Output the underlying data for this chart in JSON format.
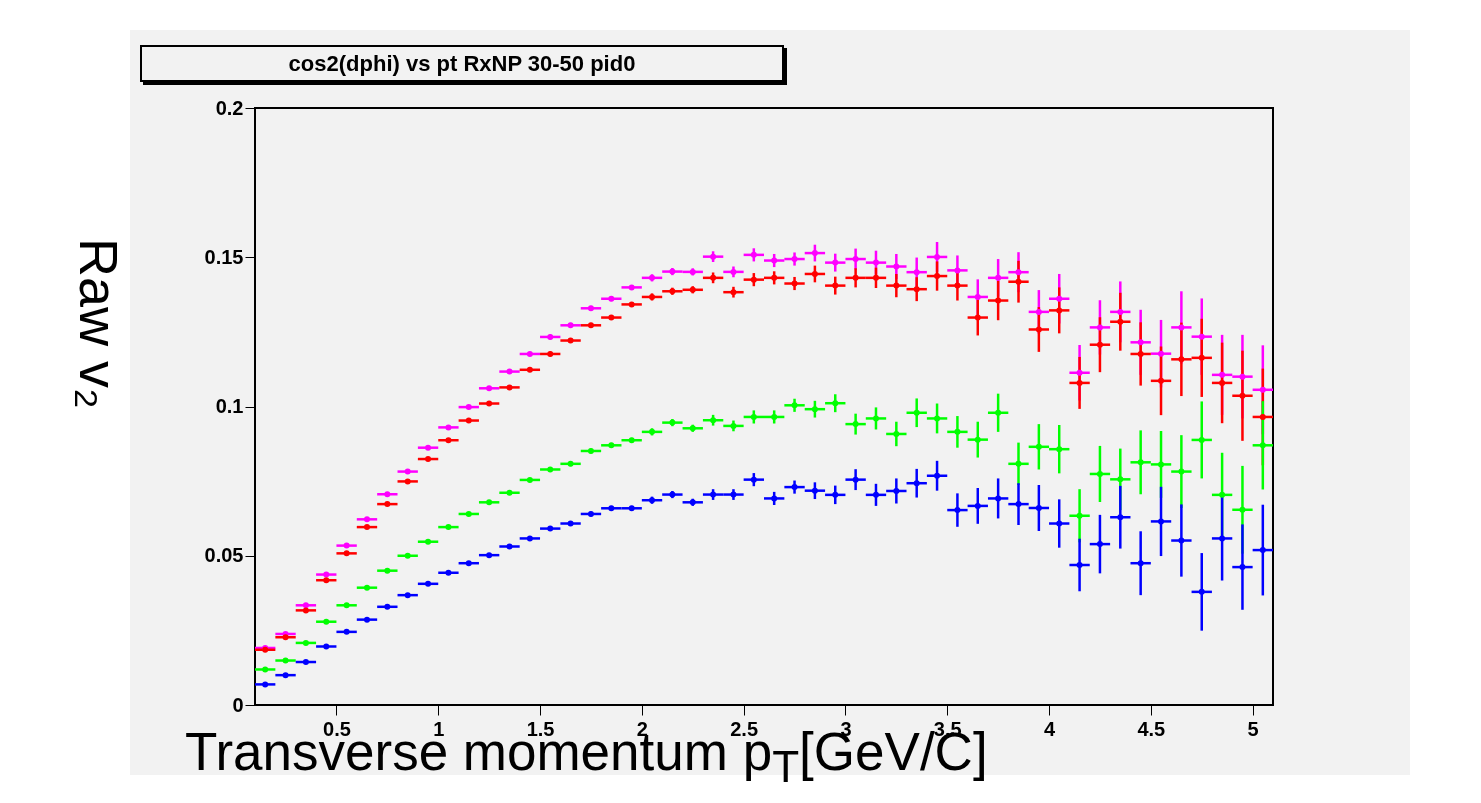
{
  "chart_data": {
    "type": "scatter",
    "title": "cos2(dphi) vs pt RxNP 30-50 pid0",
    "xlabel": "Transverse momentum p$_{T}$[GeV/C]",
    "ylabel": "Raw v₂",
    "x": [
      0.15,
      0.25,
      0.35,
      0.45,
      0.55,
      0.65,
      0.75,
      0.85,
      0.95,
      1.05,
      1.15,
      1.25,
      1.35,
      1.45,
      1.55,
      1.65,
      1.75,
      1.85,
      1.95,
      2.05,
      2.15,
      2.25,
      2.35,
      2.45,
      2.55,
      2.65,
      2.75,
      2.85,
      2.95,
      3.05,
      3.15,
      3.25,
      3.35,
      3.45,
      3.55,
      3.65,
      3.75,
      3.85,
      3.95,
      4.05,
      4.15,
      4.25,
      4.35,
      4.45,
      4.55,
      4.65,
      4.75,
      4.85,
      4.95,
      5.05
    ],
    "xlim": [
      0.1,
      5.1
    ],
    "xticks": [
      0.5,
      1,
      1.5,
      2,
      2.5,
      3,
      3.5,
      4,
      4.5,
      5
    ],
    "ylim": [
      0,
      0.2
    ],
    "yticks": [
      0,
      0.05,
      0.1,
      0.15,
      0.2
    ],
    "marker": "circle",
    "series": [
      {
        "color": "#ff00ff",
        "values": [
          0.0191,
          0.0238,
          0.0334,
          0.0437,
          0.0534,
          0.0622,
          0.0706,
          0.0782,
          0.0862,
          0.093,
          0.0998,
          0.1061,
          0.1117,
          0.1176,
          0.1233,
          0.1272,
          0.1329,
          0.1361,
          0.1399,
          0.1431,
          0.1452,
          0.1451,
          0.1502,
          0.1451,
          0.1508,
          0.1489,
          0.1494,
          0.1514,
          0.1482,
          0.1494,
          0.1482,
          0.1469,
          0.145,
          0.1501,
          0.1456,
          0.1367,
          0.1431,
          0.145,
          0.1317,
          0.1361,
          0.1113,
          0.1265,
          0.1317,
          0.1215,
          0.1177,
          0.1265,
          0.1234,
          0.1106,
          0.11,
          0.1056
        ],
        "errors": [
          0.0005,
          0.0005,
          0.0005,
          0.0005,
          0.0005,
          0.0005,
          0.0005,
          0.0005,
          0.0005,
          0.0005,
          0.0005,
          0.0005,
          0.0005,
          0.0005,
          0.0008,
          0.0008,
          0.0008,
          0.0008,
          0.0008,
          0.0012,
          0.0012,
          0.0012,
          0.0018,
          0.0018,
          0.0022,
          0.0022,
          0.0022,
          0.0028,
          0.003,
          0.0035,
          0.004,
          0.0042,
          0.0049,
          0.005,
          0.005,
          0.0059,
          0.0063,
          0.0067,
          0.0073,
          0.0083,
          0.0093,
          0.0091,
          0.0102,
          0.0109,
          0.0113,
          0.0121,
          0.0128,
          0.0134,
          0.014,
          0.0149
        ],
        "xerrors": [
          0.05,
          0.05,
          0.05,
          0.05,
          0.05,
          0.05,
          0.05,
          0.05,
          0.05,
          0.05,
          0.05,
          0.05,
          0.05,
          0.05,
          0.05,
          0.05,
          0.05,
          0.05,
          0.05,
          0.05,
          0.05,
          0.05,
          0.05,
          0.05,
          0.05,
          0.05,
          0.05,
          0.05,
          0.05,
          0.05,
          0.05,
          0.05,
          0.05,
          0.05,
          0.05,
          0.05,
          0.05,
          0.05,
          0.05,
          0.05,
          0.05,
          0.05,
          0.05,
          0.05,
          0.05,
          0.05,
          0.05,
          0.05,
          0.05,
          0.05
        ]
      },
      {
        "color": "#ff0000",
        "values": [
          0.0185,
          0.0227,
          0.0317,
          0.0418,
          0.0508,
          0.0596,
          0.0673,
          0.0749,
          0.0824,
          0.0887,
          0.0953,
          0.101,
          0.1064,
          0.1123,
          0.1176,
          0.1221,
          0.1272,
          0.1298,
          0.1342,
          0.1367,
          0.1386,
          0.1391,
          0.1431,
          0.1383,
          0.1425,
          0.1431,
          0.1412,
          0.1444,
          0.1405,
          0.1431,
          0.1431,
          0.1405,
          0.1393,
          0.1437,
          0.1405,
          0.1298,
          0.1355,
          0.1418,
          0.1258,
          0.1322,
          0.1079,
          0.1207,
          0.1284,
          0.1176,
          0.1086,
          0.1158,
          0.1163,
          0.1079,
          0.1036,
          0.0965
        ],
        "errors": [
          0.0005,
          0.0005,
          0.0005,
          0.0005,
          0.0005,
          0.0005,
          0.0005,
          0.0005,
          0.0005,
          0.0005,
          0.0005,
          0.0005,
          0.0005,
          0.0005,
          0.0008,
          0.0008,
          0.0008,
          0.0008,
          0.0008,
          0.0012,
          0.0012,
          0.0012,
          0.0018,
          0.0018,
          0.0022,
          0.0022,
          0.0022,
          0.0028,
          0.003,
          0.0032,
          0.0034,
          0.0039,
          0.004,
          0.0049,
          0.005,
          0.006,
          0.0066,
          0.007,
          0.0075,
          0.0077,
          0.0087,
          0.0092,
          0.0097,
          0.0106,
          0.0115,
          0.0123,
          0.0131,
          0.0135,
          0.0151,
          0.0162
        ],
        "xerrors": [
          0.05,
          0.05,
          0.05,
          0.05,
          0.05,
          0.05,
          0.05,
          0.05,
          0.05,
          0.05,
          0.05,
          0.05,
          0.05,
          0.05,
          0.05,
          0.05,
          0.05,
          0.05,
          0.05,
          0.05,
          0.05,
          0.05,
          0.05,
          0.05,
          0.05,
          0.05,
          0.05,
          0.05,
          0.05,
          0.05,
          0.05,
          0.05,
          0.05,
          0.05,
          0.05,
          0.05,
          0.05,
          0.05,
          0.05,
          0.05,
          0.05,
          0.05,
          0.05,
          0.05,
          0.05,
          0.05,
          0.05,
          0.05,
          0.05,
          0.05
        ]
      },
      {
        "color": "#00ff00",
        "values": [
          0.0119,
          0.0149,
          0.0208,
          0.0279,
          0.0334,
          0.0393,
          0.045,
          0.05,
          0.0547,
          0.0596,
          0.064,
          0.0679,
          0.0711,
          0.0754,
          0.0789,
          0.0808,
          0.0851,
          0.087,
          0.0887,
          0.0915,
          0.0946,
          0.0927,
          0.0954,
          0.0935,
          0.0965,
          0.0965,
          0.1004,
          0.0991,
          0.1011,
          0.0941,
          0.096,
          0.0908,
          0.0979,
          0.096,
          0.0915,
          0.0889,
          0.0979,
          0.0808,
          0.0865,
          0.0857,
          0.0634,
          0.0774,
          0.0756,
          0.0813,
          0.0806,
          0.0782,
          0.0888,
          0.0704,
          0.0654,
          0.087
        ],
        "errors": [
          0.0005,
          0.0005,
          0.0005,
          0.0005,
          0.0005,
          0.0005,
          0.0005,
          0.0005,
          0.0005,
          0.0005,
          0.0005,
          0.0005,
          0.0005,
          0.0005,
          0.0008,
          0.0008,
          0.0008,
          0.0008,
          0.0008,
          0.0012,
          0.0012,
          0.0012,
          0.0018,
          0.0018,
          0.0022,
          0.0022,
          0.0022,
          0.0028,
          0.003,
          0.0035,
          0.0037,
          0.0041,
          0.0048,
          0.005,
          0.0053,
          0.006,
          0.0064,
          0.0071,
          0.0076,
          0.0081,
          0.0089,
          0.0094,
          0.0103,
          0.0107,
          0.0112,
          0.0122,
          0.0129,
          0.0141,
          0.0147,
          0.0148
        ],
        "xerrors": [
          0.05,
          0.05,
          0.05,
          0.05,
          0.05,
          0.05,
          0.05,
          0.05,
          0.05,
          0.05,
          0.05,
          0.05,
          0.05,
          0.05,
          0.05,
          0.05,
          0.05,
          0.05,
          0.05,
          0.05,
          0.05,
          0.05,
          0.05,
          0.05,
          0.05,
          0.05,
          0.05,
          0.05,
          0.05,
          0.05,
          0.05,
          0.05,
          0.05,
          0.05,
          0.05,
          0.05,
          0.05,
          0.05,
          0.05,
          0.05,
          0.05,
          0.05,
          0.05,
          0.05,
          0.05,
          0.05,
          0.05,
          0.05,
          0.05,
          0.05
        ]
      },
      {
        "color": "#0000ff",
        "values": [
          0.0069,
          0.01,
          0.0144,
          0.0196,
          0.0245,
          0.0286,
          0.0329,
          0.0368,
          0.0406,
          0.0443,
          0.0475,
          0.0502,
          0.0531,
          0.0558,
          0.0591,
          0.0608,
          0.064,
          0.0659,
          0.0659,
          0.0686,
          0.0705,
          0.0679,
          0.0705,
          0.0705,
          0.0755,
          0.0692,
          0.073,
          0.0718,
          0.0704,
          0.0755,
          0.0704,
          0.0717,
          0.0743,
          0.0768,
          0.0653,
          0.0667,
          0.0692,
          0.0673,
          0.066,
          0.0608,
          0.0469,
          0.0539,
          0.0629,
          0.0475,
          0.0615,
          0.0551,
          0.0379,
          0.0558,
          0.0462,
          0.0519
        ],
        "errors": [
          0.0005,
          0.0005,
          0.0005,
          0.0005,
          0.0005,
          0.0005,
          0.0005,
          0.0005,
          0.0005,
          0.0005,
          0.0005,
          0.0005,
          0.0005,
          0.0005,
          0.0008,
          0.0008,
          0.0008,
          0.0008,
          0.0008,
          0.0012,
          0.0012,
          0.0012,
          0.0018,
          0.0018,
          0.0022,
          0.0022,
          0.0022,
          0.0028,
          0.0031,
          0.0035,
          0.0037,
          0.0042,
          0.0048,
          0.005,
          0.0056,
          0.006,
          0.0067,
          0.007,
          0.0077,
          0.0081,
          0.0088,
          0.0098,
          0.0105,
          0.0107,
          0.0116,
          0.0121,
          0.013,
          0.0141,
          0.0143,
          0.0152
        ],
        "xerrors": [
          0.05,
          0.05,
          0.05,
          0.05,
          0.05,
          0.05,
          0.05,
          0.05,
          0.05,
          0.05,
          0.05,
          0.05,
          0.05,
          0.05,
          0.05,
          0.05,
          0.05,
          0.05,
          0.05,
          0.05,
          0.05,
          0.05,
          0.05,
          0.05,
          0.05,
          0.05,
          0.05,
          0.05,
          0.05,
          0.05,
          0.05,
          0.05,
          0.05,
          0.05,
          0.05,
          0.05,
          0.05,
          0.05,
          0.05,
          0.05,
          0.05,
          0.05,
          0.05,
          0.05,
          0.05,
          0.05,
          0.05,
          0.05,
          0.05,
          0.05
        ]
      }
    ]
  }
}
